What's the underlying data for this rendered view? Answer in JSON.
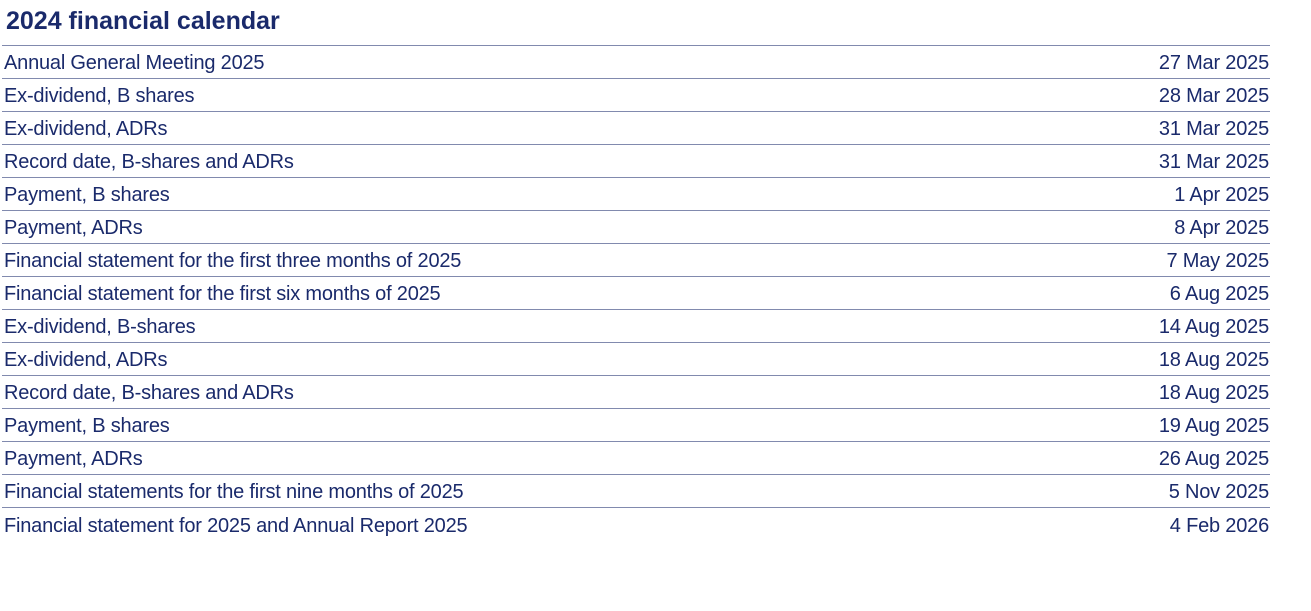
{
  "page": {
    "title": "2024 financial calendar"
  },
  "colors": {
    "text_navy": "#1a2a6b",
    "rule": "#5a6695",
    "background": "#ffffff"
  },
  "table": {
    "columns": [
      "event",
      "date"
    ],
    "rows": [
      {
        "event": "Annual General Meeting 2025",
        "date": "27 Mar 2025"
      },
      {
        "event": "Ex-dividend, B shares",
        "date": "28 Mar 2025"
      },
      {
        "event": "Ex-dividend, ADRs",
        "date": "31 Mar 2025"
      },
      {
        "event": "Record date, B-shares and ADRs",
        "date": "31 Mar 2025"
      },
      {
        "event": "Payment, B shares",
        "date": "1 Apr 2025"
      },
      {
        "event": "Payment, ADRs",
        "date": "8 Apr 2025"
      },
      {
        "event": "Financial statement for the first three months of 2025",
        "date": "7 May 2025"
      },
      {
        "event": "Financial statement for the first six months of 2025",
        "date": "6 Aug 2025"
      },
      {
        "event": "Ex-dividend, B-shares",
        "date": "14 Aug 2025"
      },
      {
        "event": "Ex-dividend, ADRs",
        "date": "18 Aug 2025"
      },
      {
        "event": "Record date, B-shares and ADRs",
        "date": "18 Aug 2025"
      },
      {
        "event": "Payment, B shares",
        "date": "19 Aug 2025"
      },
      {
        "event": "Payment, ADRs",
        "date": "26 Aug 2025"
      },
      {
        "event": "Financial statements for the first nine months of 2025",
        "date": "5 Nov 2025"
      },
      {
        "event": "Financial statement for 2025 and Annual Report 2025",
        "date": "4 Feb 2026"
      }
    ]
  }
}
